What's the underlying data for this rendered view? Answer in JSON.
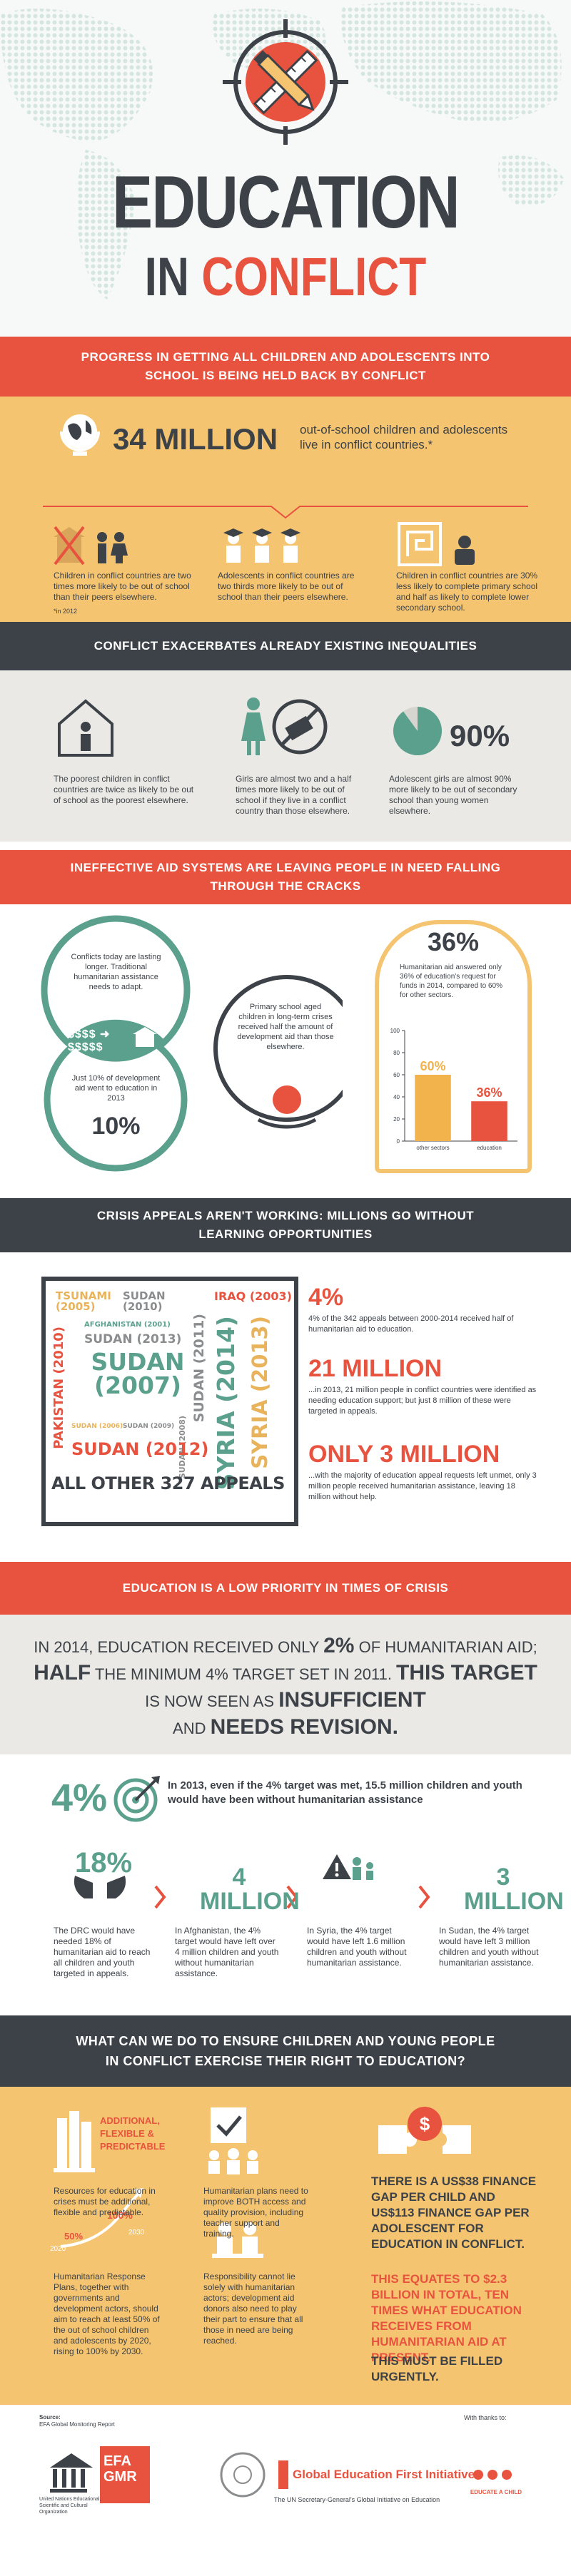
{
  "header": {
    "title_line1": "EDUCATION",
    "title_in": "IN",
    "title_conflict": "CONFLICT"
  },
  "progress": {
    "banner": "PROGRESS IN GETTING ALL CHILDREN AND ADOLESCENTS INTO SCHOOL IS BEING HELD BACK BY CONFLICT",
    "stat": "34 MILLION",
    "stat_text": "out-of-school children and adolescents live in conflict countries.*",
    "columns": [
      "Children in conflict countries are two times more likely to be out of school than their peers elsewhere.",
      "Adolescents in conflict countries are two thirds more likely to be out of school than their peers elsewhere.",
      "Children in conflict countries are 30% less likely to complete primary school and half as likely to complete lower secondary school."
    ],
    "footnote": "*in 2012"
  },
  "inequalities": {
    "banner": "CONFLICT EXACERBATES ALREADY EXISTING INEQUALITIES",
    "items": [
      "The poorest children in conflict countries are twice as likely to be out of school as the poorest elsewhere.",
      "Girls are almost two and a half times more likely to be out of school if they live in a conflict country than those elsewhere.",
      "Adolescent girls are almost 90% more likely to be out of secondary school than young women elsewhere."
    ],
    "pie": {
      "value": 90,
      "label": "90%"
    }
  },
  "aid": {
    "banner": "INEFFECTIVE AID SYSTEMS ARE LEAVING PEOPLE IN NEED FALLING THROUGH THE CRACKS",
    "circle_top": "Conflicts today are lasting longer. Traditional humanitarian assistance needs to adapt.",
    "circle_bottom": "Just 10% of development aid went to education in 2013",
    "circle_bottom_stat": "10%",
    "circle_middle": "Primary school aged children in long-term crises received half the amount of development aid than those elsewhere.",
    "panel_stat": "36%",
    "panel_text": "Humanitarian aid answered only 36% of education's request for funds in 2014, compared to 60% for other sectors.",
    "chart": {
      "type": "bar",
      "categories": [
        "other sectors",
        "education"
      ],
      "values": [
        60,
        36
      ],
      "value_labels": [
        "60%",
        "36%"
      ],
      "colors": [
        "#f2b24c",
        "#e8533f"
      ],
      "ylim": [
        0,
        100
      ],
      "yticks": [
        0,
        20,
        40,
        60,
        80,
        100
      ]
    }
  },
  "appeals": {
    "banner": "CRISIS APPEALS AREN'T WORKING: MILLIONS GO WITHOUT LEARNING OPPORTUNITIES",
    "cloud": [
      "TSUNAMI (2005)",
      "SUDAN (2010)",
      "IRAQ (2003)",
      "AFGHANISTAN (2001)",
      "PAKISTAN (2010)",
      "SUDAN (2013)",
      "SUDAN (2007)",
      "SUDAN (2011)",
      "SYRIA (2014)",
      "SYRIA (2013)",
      "SUDAN (2006)",
      "SUDAN (2009)",
      "SUDAN (2008)",
      "SUDAN (2012)",
      "ALL OTHER 327 APPEALS"
    ],
    "stats": [
      {
        "big": "4%",
        "text": "4% of the 342 appeals between 2000-2014 received half of humanitarian aid to education."
      },
      {
        "big": "21 MILLION",
        "text": "...in 2013, 21 million people in conflict countries were identified as needing education support; but just 8 million of these were targeted in appeals."
      },
      {
        "big": "ONLY 3 MILLION",
        "text": "...with the majority of education appeal requests left unmet, only 3 million people received humanitarian assistance, leaving 18 million without help."
      }
    ]
  },
  "priority": {
    "banner": "EDUCATION IS A LOW PRIORITY IN TIMES OF CRISIS",
    "statement": [
      "IN 2014, EDUCATION RECEIVED ONLY ",
      "2%",
      " OF HUMANITARIAN AID;",
      "HALF",
      " THE MINIMUM 4% TARGET SET IN 2011. ",
      "THIS TARGET",
      "IS NOW SEEN AS ",
      "INSUFFICIENT",
      "AND ",
      "NEEDS REVISION."
    ]
  },
  "target": {
    "stat": "4%",
    "text": "In 2013, even if the 4% target was met, 15.5 million children and youth would have been without humanitarian assistance",
    "items": [
      {
        "big": "18%",
        "text": "The DRC would have needed 18% of humanitarian aid to reach all children and youth targeted in appeals."
      },
      {
        "big": "4 MILLION",
        "text": "In Afghanistan, the 4% target would have left over 4 million children and youth without humanitarian assistance."
      },
      {
        "text": "In Syria, the 4% target would have left 1.6 million children and youth without humanitarian assistance."
      },
      {
        "big": "3 MILLION",
        "text": "In Sudan, the 4% target would have left 3 million children and youth without humanitarian assistance."
      }
    ]
  },
  "action": {
    "banner": "WHAT CAN WE DO TO ENSURE CHILDREN AND YOUNG PEOPLE IN CONFLICT EXERCISE THEIR RIGHT TO EDUCATION?",
    "books_label": "ADDITIONAL, FLEXIBLE & PREDICTABLE",
    "items": [
      "Resources for education in crises must be additional, flexible and predictable.",
      "Humanitarian plans need to improve BOTH access and quality provision, including teacher support and training.",
      "Humanitarian Response Plans, together with governments and development actors, should aim to reach at least 50% of the out of school children and adolescents by 2020, rising to 100% by 2030.",
      "Responsibility cannot lie solely with humanitarian actors; development aid donors also need to play their part to ensure that all those in need are being reached."
    ],
    "graph_labels": [
      "50%",
      "100%",
      "2020",
      "2030"
    ],
    "panel": [
      "THERE IS A US$38 FINANCE GAP PER CHILD AND US$113 FINANCE GAP PER ADOLESCENT FOR EDUCATION IN CONFLICT.",
      "THIS EQUATES TO $2.3 BILLION IN TOTAL, TEN TIMES WHAT EDUCATION RECEIVES FROM HUMANITARIAN AID AT PRESENT.",
      "THIS MUST BE FILLED URGENTLY."
    ]
  },
  "footer": {
    "source_label": "Source:",
    "source": "EFA Global Monitoring Report",
    "unesco": "United Nations Educational, Scientific and Cultural Organization",
    "gmr": "EFA GMR",
    "gefi": "Global Education First Initiative",
    "gefi_sub": "The UN Secretary-General's Global Initiative on Education",
    "thanks": "With thanks to:",
    "partner": "EDUCATE A CHILD"
  }
}
